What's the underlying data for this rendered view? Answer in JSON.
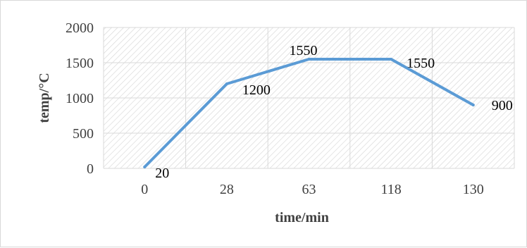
{
  "chart_data": {
    "type": "line",
    "title": "",
    "xlabel": "time/min",
    "ylabel": "temp/°C",
    "categories": [
      "0",
      "28",
      "63",
      "118",
      "130"
    ],
    "series": [
      {
        "values": [
          20,
          1200,
          1550,
          1550,
          900
        ],
        "data_labels": [
          "20",
          "1200",
          "1550",
          "1550",
          "900"
        ]
      }
    ],
    "ylim": [
      0,
      2000
    ],
    "yticks": [
      "0",
      "500",
      "1000",
      "1500",
      "2000"
    ],
    "grid": true,
    "legend": "none",
    "line_color": "#5b9bd5",
    "plot_fill": "hatched"
  }
}
